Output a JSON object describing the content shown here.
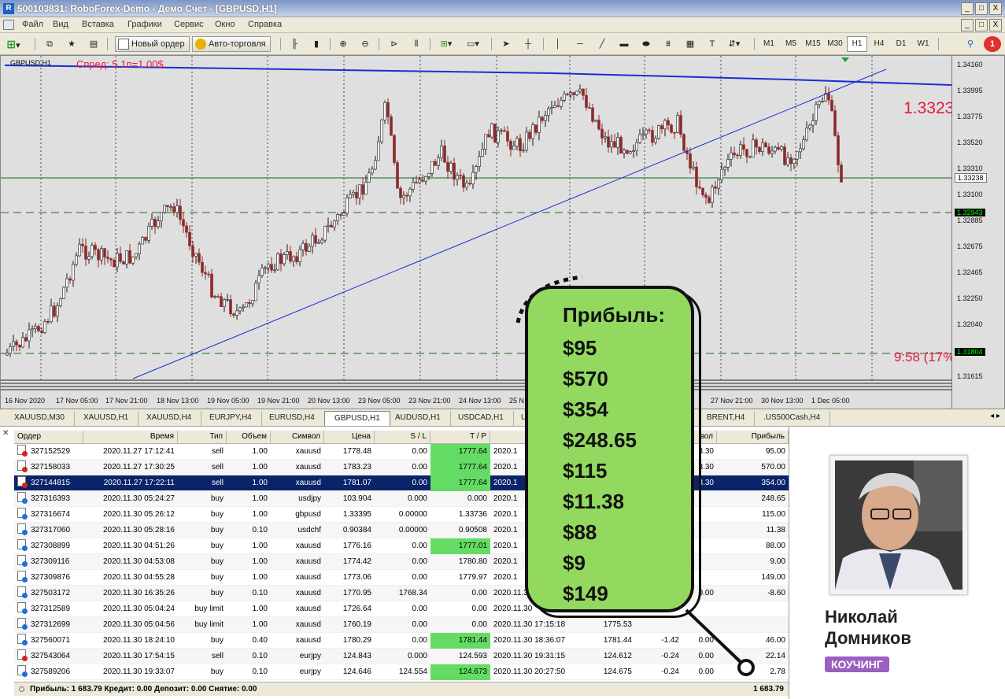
{
  "window": {
    "title": "500103831: RoboForex-Demo - Демо Счет - [GBPUSD,H1]",
    "buttons": [
      "_",
      "□",
      "X"
    ]
  },
  "menu": [
    "Файл",
    "Вид",
    "Вставка",
    "Графики",
    "Сервис",
    "Окно",
    "Справка"
  ],
  "toolbar": {
    "new_order": "Новый ордер",
    "auto_trading": "Авто-торговля",
    "timeframes": [
      "M1",
      "M5",
      "M15",
      "M30",
      "H1",
      "H4",
      "D1",
      "W1"
    ],
    "active_timeframe": "H1",
    "notifications": "1"
  },
  "chart": {
    "symbol_label": "GBPUSD,H1",
    "spread_text": "Спред: 5 1п=1.00$",
    "current_price": "1.33238",
    "timer": "9:58 (17%)",
    "y_ticks": [
      "1.34160",
      "1.33995",
      "1.33775",
      "1.33520",
      "1.33310",
      "1.33100",
      "1.32885",
      "1.32675",
      "1.32465",
      "1.32250",
      "1.32040",
      "1.31615"
    ],
    "price_tags": [
      "1.33238",
      "1.32943",
      "1.31804"
    ],
    "x_ticks": [
      "16 Nov 2020",
      "17 Nov 05:00",
      "17 Nov 21:00",
      "18 Nov 13:00",
      "19 Nov 05:00",
      "19 Nov 21:00",
      "20 Nov 13:00",
      "23 Nov 05:00",
      "23 Nov 21:00",
      "24 Nov 13:00",
      "25 N",
      "27 Nov 21:00",
      "30 Nov 13:00",
      "1 Dec 05:00"
    ],
    "colors": {
      "background": "#dfdfdf",
      "bull": "#1a1a1a",
      "bear": "#8b2a2a",
      "trendline": "#1a2fd0",
      "levels": "#1a6a1a",
      "accent": "#e8183c"
    }
  },
  "symbol_tabs": [
    "XAUUSD,M30",
    "XAUUSD,H1",
    "XAUUSD,H4",
    "EURJPY,H4",
    "EURUSD,H4",
    "GBPUSD,H1",
    "AUDUSD,H1",
    "USDCAD,H1",
    "USD",
    "BRENT,H4",
    ".US500Cash,H4"
  ],
  "active_symbol_tab": "GBPUSD,H1",
  "terminal": {
    "headers": [
      "Ордер",
      "Время",
      "Тип",
      "Объем",
      "Символ",
      "Цена",
      "S / L",
      "T / P",
      "",
      "",
      "",
      "вол",
      "Прибыль"
    ],
    "rows": [
      {
        "order": "327152529",
        "time": "2020.11.27 17:12:41",
        "type": "sell",
        "volume": "1.00",
        "symbol": "xauusd",
        "price": "1778.48",
        "sl": "0.00",
        "tp": "1777.64",
        "tp_hl": true,
        "ctime": "2020.1",
        "cprice": "",
        "comm": "",
        "swap": "3.30",
        "profit": "95.00"
      },
      {
        "order": "327158033",
        "time": "2020.11.27 17:30:25",
        "type": "sell",
        "volume": "1.00",
        "symbol": "xauusd",
        "price": "1783.23",
        "sl": "0.00",
        "tp": "1777.64",
        "tp_hl": true,
        "ctime": "2020.1",
        "cprice": "",
        "comm": "",
        "swap": "3.30",
        "profit": "570.00"
      },
      {
        "order": "327144815",
        "time": "2020.11.27 17:22:11",
        "type": "sell",
        "volume": "1.00",
        "symbol": "xauusd",
        "price": "1781.07",
        "sl": "0.00",
        "tp": "1777.64",
        "tp_hl": true,
        "ctime": "2020.1",
        "cprice": "",
        "comm": "",
        "swap": "3.30",
        "profit": "354.00",
        "selected": true
      },
      {
        "order": "327316393",
        "time": "2020.11.30 05:24:27",
        "type": "buy",
        "volume": "1.00",
        "symbol": "usdjpy",
        "price": "103.904",
        "sl": "0.000",
        "tp": "0.000",
        "tp_hl": false,
        "ctime": "2020.1",
        "cprice": "",
        "comm": "",
        "swap": "",
        "profit": "248.65"
      },
      {
        "order": "327316674",
        "time": "2020.11.30 05:26:12",
        "type": "buy",
        "volume": "1.00",
        "symbol": "gbpusd",
        "price": "1.33395",
        "sl": "0.00000",
        "tp": "1.33736",
        "tp_hl": false,
        "ctime": "2020.1",
        "cprice": "",
        "comm": "",
        "swap": "",
        "profit": "115.00"
      },
      {
        "order": "327317060",
        "time": "2020.11.30 05:28:16",
        "type": "buy",
        "volume": "0.10",
        "symbol": "usdchf",
        "price": "0.90384",
        "sl": "0.00000",
        "tp": "0.90508",
        "tp_hl": false,
        "ctime": "2020.1",
        "cprice": "",
        "comm": "",
        "swap": "",
        "profit": "11.38"
      },
      {
        "order": "327308899",
        "time": "2020.11.30 04:51:26",
        "type": "buy",
        "volume": "1.00",
        "symbol": "xauusd",
        "price": "1776.16",
        "sl": "0.00",
        "tp": "1777.01",
        "tp_hl": true,
        "ctime": "2020.1",
        "cprice": "",
        "comm": "",
        "swap": "",
        "profit": "88.00"
      },
      {
        "order": "327309116",
        "time": "2020.11.30 04:53:08",
        "type": "buy",
        "volume": "1.00",
        "symbol": "xauusd",
        "price": "1774.42",
        "sl": "0.00",
        "tp": "1780.80",
        "tp_hl": false,
        "ctime": "2020.1",
        "cprice": "",
        "comm": "",
        "swap": "",
        "profit": "9.00"
      },
      {
        "order": "327309876",
        "time": "2020.11.30 04:55:28",
        "type": "buy",
        "volume": "1.00",
        "symbol": "xauusd",
        "price": "1773.06",
        "sl": "0.00",
        "tp": "1779.97",
        "tp_hl": false,
        "ctime": "2020.1",
        "cprice": "",
        "comm": "",
        "swap": "",
        "profit": "149.00"
      },
      {
        "order": "327503172",
        "time": "2020.11.30 16:35:26",
        "type": "buy",
        "volume": "0.10",
        "symbol": "xauusd",
        "price": "1770.95",
        "sl": "1768.34",
        "tp": "0.00",
        "tp_hl": false,
        "ctime": "2020.11.3",
        "cprice": "",
        "comm": "",
        "swap": "0.00",
        "profit": "-8.60"
      },
      {
        "order": "327312589",
        "time": "2020.11.30 05:04:24",
        "type": "buy limit",
        "volume": "1.00",
        "symbol": "xauusd",
        "price": "1726.64",
        "sl": "0.00",
        "tp": "0.00",
        "tp_hl": false,
        "ctime": "2020.11.30",
        "cprice": "",
        "comm": "",
        "swap": "",
        "profit": ""
      },
      {
        "order": "327312699",
        "time": "2020.11.30 05:04:56",
        "type": "buy limit",
        "volume": "1.00",
        "symbol": "xauusd",
        "price": "1760.19",
        "sl": "0.00",
        "tp": "0.00",
        "tp_hl": false,
        "ctime": "2020.11.30 17:15:18",
        "cprice": "1775.53",
        "comm": "",
        "swap": "",
        "profit": ""
      },
      {
        "order": "327560071",
        "time": "2020.11.30 18:24:10",
        "type": "buy",
        "volume": "0.40",
        "symbol": "xauusd",
        "price": "1780.29",
        "sl": "0.00",
        "tp": "1781.44",
        "tp_hl": true,
        "ctime": "2020.11.30 18:36:07",
        "cprice": "1781.44",
        "comm": "-1.42",
        "swap": "0.00",
        "profit": "46.00"
      },
      {
        "order": "327543064",
        "time": "2020.11.30 17:54:15",
        "type": "sell",
        "volume": "0.10",
        "symbol": "eurjpy",
        "price": "124.843",
        "sl": "0.000",
        "tp": "124.593",
        "tp_hl": false,
        "ctime": "2020.11.30 19:31:15",
        "cprice": "124.612",
        "comm": "-0.24",
        "swap": "0.00",
        "profit": "22.14"
      },
      {
        "order": "327589206",
        "time": "2020.11.30 19:33:07",
        "type": "buy",
        "volume": "0.10",
        "symbol": "eurjpy",
        "price": "124.646",
        "sl": "124.554",
        "tp": "124.673",
        "tp_hl": true,
        "ctime": "2020.11.30 20:27:50",
        "cprice": "124.675",
        "comm": "-0.24",
        "swap": "0.00",
        "profit": "2.78"
      }
    ],
    "footer": "Прибыль: 1 683.79  Кредит: 0.00  Депозит: 0.00  Снятие: 0.00",
    "footer_total": "1 683.79"
  },
  "bubble": {
    "title": "Прибыль:",
    "items": [
      "$95",
      "$570",
      "$354",
      "$248.65",
      "$115",
      "$11.38",
      "$88",
      "$9",
      "$149"
    ],
    "color": "#93d95f"
  },
  "person": {
    "name_line1": "Николай",
    "name_line2": "Домников",
    "badge": "КОУЧИНГ",
    "badge_color": "#9b5fc0"
  }
}
